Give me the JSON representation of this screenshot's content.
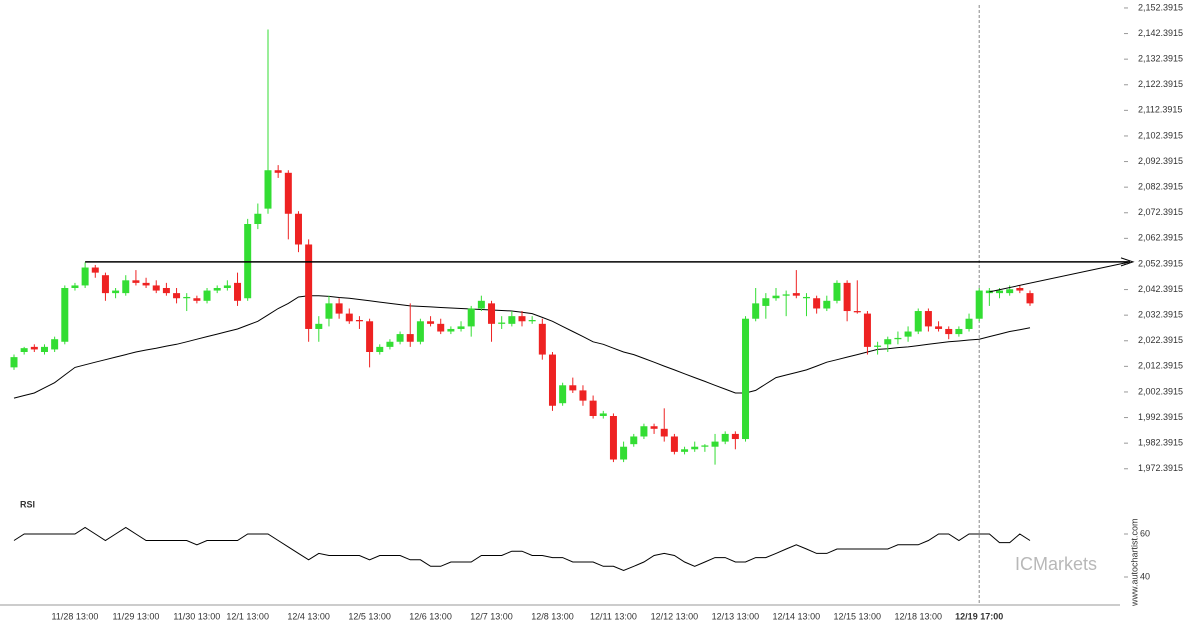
{
  "chart_data": {
    "type": "candlestick",
    "categories": [
      null,
      null,
      null,
      null,
      null,
      null,
      "11/28 13:00",
      null,
      null,
      null,
      null,
      null,
      "11/29 13:00",
      null,
      null,
      null,
      null,
      null,
      "11/30 13:00",
      null,
      null,
      null,
      null,
      "12/1 13:00",
      null,
      null,
      null,
      null,
      null,
      "12/4 13:00",
      null,
      null,
      null,
      null,
      null,
      "12/5 13:00",
      null,
      null,
      null,
      null,
      null,
      "12/6 13:00",
      null,
      null,
      null,
      null,
      null,
      "12/7 13:00",
      null,
      null,
      null,
      null,
      null,
      "12/8 13:00",
      null,
      null,
      null,
      null,
      null,
      "12/11 13:00",
      null,
      null,
      null,
      null,
      null,
      "12/12 13:00",
      null,
      null,
      null,
      null,
      null,
      "12/13 13:00",
      null,
      null,
      null,
      null,
      null,
      "12/14 13:00",
      null,
      null,
      null,
      null,
      null,
      "12/15 13:00",
      null,
      null,
      null,
      null,
      null,
      "12/18 13:00",
      null,
      null,
      null,
      null,
      null,
      "12/19 17:00",
      null,
      null,
      null,
      null,
      null
    ],
    "ohlc": [
      [
        2012,
        2017,
        2011,
        2016
      ],
      [
        2018,
        2020,
        2017,
        2019.5
      ],
      [
        2020,
        2021,
        2018,
        2019
      ],
      [
        2018,
        2021,
        2017,
        2020
      ],
      [
        2019,
        2024,
        2018,
        2023
      ],
      [
        2022,
        2044,
        2021,
        2043
      ],
      [
        2043,
        2045,
        2042,
        2044
      ],
      [
        2044,
        2053,
        2043,
        2051
      ],
      [
        2051,
        2052,
        2047,
        2049
      ],
      [
        2048,
        2049,
        2038,
        2041
      ],
      [
        2041,
        2043,
        2039,
        2042
      ],
      [
        2041,
        2048,
        2040,
        2046
      ],
      [
        2046,
        2050,
        2044,
        2045
      ],
      [
        2045,
        2047,
        2043,
        2044
      ],
      [
        2044,
        2046,
        2041,
        2042
      ],
      [
        2043,
        2045,
        2040,
        2041
      ],
      [
        2041,
        2043,
        2037,
        2039
      ],
      [
        2039,
        2041,
        2034,
        2039.5
      ],
      [
        2039,
        2040,
        2037,
        2038
      ],
      [
        2038,
        2043,
        2037,
        2042
      ],
      [
        2042,
        2044,
        2041,
        2043
      ],
      [
        2043,
        2046,
        2042,
        2044
      ],
      [
        2045,
        2049,
        2036,
        2038
      ],
      [
        2039,
        2070,
        2038,
        2068
      ],
      [
        2068,
        2076,
        2066,
        2072
      ],
      [
        2074,
        2144,
        2072,
        2089
      ],
      [
        2089,
        2091,
        2086,
        2088
      ],
      [
        2088,
        2089,
        2062,
        2072
      ],
      [
        2072,
        2073,
        2057,
        2060
      ],
      [
        2060,
        2062,
        2022,
        2027
      ],
      [
        2027,
        2032,
        2022,
        2029
      ],
      [
        2031,
        2040,
        2028,
        2037
      ],
      [
        2037,
        2039,
        2031,
        2033
      ],
      [
        2033,
        2035,
        2029,
        2030
      ],
      [
        2030.5,
        2032,
        2027,
        2030
      ],
      [
        2030,
        2031,
        2012,
        2018
      ],
      [
        2018,
        2021,
        2017,
        2020
      ],
      [
        2020,
        2023,
        2019,
        2022
      ],
      [
        2022,
        2026,
        2021,
        2025
      ],
      [
        2025,
        2037,
        2020,
        2022
      ],
      [
        2022,
        2031,
        2021,
        2030
      ],
      [
        2030,
        2032,
        2028,
        2029
      ],
      [
        2029,
        2031,
        2025,
        2026
      ],
      [
        2026,
        2028,
        2025,
        2027
      ],
      [
        2027,
        2030,
        2026,
        2028
      ],
      [
        2028,
        2036,
        2024,
        2035
      ],
      [
        2035,
        2040,
        2034,
        2038
      ],
      [
        2037,
        2038,
        2022,
        2029
      ],
      [
        2029,
        2032,
        2027,
        2029.5
      ],
      [
        2029,
        2034,
        2028,
        2032
      ],
      [
        2032,
        2034,
        2028,
        2030
      ],
      [
        2030,
        2032,
        2029,
        2030.5
      ],
      [
        2029,
        2031,
        2015,
        2017
      ],
      [
        2017,
        2018,
        1995,
        1997
      ],
      [
        1998,
        2006,
        1997,
        2005
      ],
      [
        2005,
        2008,
        2002,
        2003
      ],
      [
        2003,
        2005,
        1997,
        1999
      ],
      [
        1999,
        2001,
        1992,
        1993
      ],
      [
        1993,
        1995,
        1992,
        1994
      ],
      [
        1993,
        1994,
        1975,
        1976
      ],
      [
        1976,
        1983,
        1975,
        1981
      ],
      [
        1982,
        1986,
        1981,
        1985
      ],
      [
        1985,
        1990,
        1984,
        1989
      ],
      [
        1989,
        1990,
        1986,
        1988
      ],
      [
        1988,
        1996,
        1983,
        1985
      ],
      [
        1985,
        1986,
        1978,
        1979
      ],
      [
        1979,
        1981,
        1978,
        1980
      ],
      [
        1980,
        1983,
        1979,
        1981
      ],
      [
        1981,
        1982,
        1979,
        1981.5
      ],
      [
        1981,
        1986,
        1974,
        1983
      ],
      [
        1983,
        1987,
        1982,
        1986
      ],
      [
        1986,
        1987,
        1980,
        1984
      ],
      [
        1984,
        2032,
        1983,
        2031
      ],
      [
        2031,
        2043,
        2030,
        2037
      ],
      [
        2036,
        2041,
        2031,
        2039
      ],
      [
        2039,
        2043,
        2038,
        2040
      ],
      [
        2040,
        2042,
        2032,
        2040.5
      ],
      [
        2041,
        2050,
        2039,
        2040
      ],
      [
        2039,
        2041,
        2032,
        2039.5
      ],
      [
        2039,
        2040,
        2033,
        2035
      ],
      [
        2035,
        2040,
        2034,
        2038
      ],
      [
        2038,
        2046,
        2037,
        2045
      ],
      [
        2045,
        2046,
        2030,
        2034
      ],
      [
        2034,
        2046,
        2033,
        2033.5
      ],
      [
        2033,
        2034,
        2017,
        2020
      ],
      [
        2020,
        2022,
        2017,
        2020.5
      ],
      [
        2021,
        2024,
        2018,
        2023
      ],
      [
        2023,
        2026,
        2021,
        2023.5
      ],
      [
        2024,
        2028,
        2022,
        2026
      ],
      [
        2026,
        2035,
        2025,
        2034
      ],
      [
        2034,
        2035,
        2026,
        2028
      ],
      [
        2028,
        2030,
        2026,
        2027
      ],
      [
        2027,
        2028,
        2023,
        2025
      ],
      [
        2025,
        2028,
        2024,
        2027
      ],
      [
        2027,
        2033,
        2026,
        2031
      ],
      [
        2031,
        2043,
        2030,
        2042
      ],
      [
        2041,
        2043,
        2036,
        2042
      ],
      [
        2041,
        2043,
        2039,
        2042
      ],
      [
        2041,
        2044,
        2040,
        2042.5
      ],
      [
        2043,
        2044,
        2041,
        2042
      ],
      [
        2041,
        2042,
        2036,
        2037
      ]
    ],
    "up_color": "#33dd33",
    "down_color": "#ee2222",
    "ylim": [
      1968,
      2155.5
    ],
    "yticks": [
      {
        "value": 1972.3915,
        "label": "1,972.3915"
      },
      {
        "value": 1982.3915,
        "label": "1,982.3915"
      },
      {
        "value": 1992.3915,
        "label": "1,992.3915"
      },
      {
        "value": 2002.3915,
        "label": "2,002.3915"
      },
      {
        "value": 2012.3915,
        "label": "2,012.3915"
      },
      {
        "value": 2022.3915,
        "label": "2,022.3915"
      },
      {
        "value": 2032.3915,
        "label": "2,032.3915"
      },
      {
        "value": 2042.3915,
        "label": "2,042.3915"
      },
      {
        "value": 2052.3915,
        "label": "2,052.3915"
      },
      {
        "value": 2062.3915,
        "label": "2,062.3915"
      },
      {
        "value": 2072.3915,
        "label": "2,072.3915"
      },
      {
        "value": 2082.3915,
        "label": "2,082.3915"
      },
      {
        "value": 2092.3915,
        "label": "2,092.3915"
      },
      {
        "value": 2102.3915,
        "label": "2,102.3915"
      },
      {
        "value": 2112.3915,
        "label": "2,112.3915"
      },
      {
        "value": 2122.3915,
        "label": "2,122.3915"
      },
      {
        "value": 2132.3915,
        "label": "2,132.3915"
      },
      {
        "value": 2142.3915,
        "label": "2,142.3915"
      },
      {
        "value": 2152.3915,
        "label": "2,152.3915"
      }
    ],
    "moving_average": {
      "color": "#000000",
      "values": [
        2000,
        2001,
        2002,
        2004,
        2006,
        2009,
        2012,
        2013,
        2014,
        2015,
        2016,
        2017,
        2018,
        2018.8,
        2019.5,
        2020.3,
        2021,
        2022,
        2023,
        2024,
        2025,
        2026,
        2027,
        2028.5,
        2030,
        2032.5,
        2035,
        2037,
        2039.5,
        2040,
        2040,
        2039.7,
        2039.3,
        2039,
        2038.5,
        2038,
        2037.5,
        2037,
        2036.5,
        2036,
        2035.8,
        2035.6,
        2035.4,
        2035.2,
        2035,
        2034.8,
        2034.6,
        2034.4,
        2034.2,
        2034,
        2033.5,
        2033,
        2031.5,
        2030,
        2028,
        2026,
        2024,
        2022,
        2021,
        2019.5,
        2018,
        2017,
        2015.5,
        2014,
        2012.5,
        2011,
        2009.5,
        2008,
        2006.5,
        2005,
        2003.5,
        2002,
        2002,
        2003,
        2005.5,
        2008,
        2009,
        2010,
        2011,
        2012.5,
        2014,
        2015,
        2016,
        2017,
        2018,
        2019,
        2019.3,
        2019.7,
        2020,
        2020.5,
        2021,
        2021.5,
        2022,
        2022.3,
        2022.7,
        2023,
        2024,
        2025,
        2026,
        2026.7,
        2027.5
      ]
    },
    "resistance_level": 2053.2,
    "trend_line": [
      2041.5,
      2053.2
    ],
    "rsi": {
      "label": "RSI",
      "color": "#000000",
      "ylim": [
        30,
        75
      ],
      "yticks": [
        40,
        60
      ],
      "values": [
        57,
        60,
        60,
        60,
        60,
        60,
        60,
        63,
        60,
        57,
        60,
        63,
        60,
        57,
        57,
        57,
        57,
        57,
        55,
        57,
        57,
        57,
        57,
        60,
        60,
        60,
        57,
        54,
        51,
        48,
        51,
        50,
        50,
        50,
        50,
        48,
        50,
        50,
        50,
        48,
        48,
        45,
        45,
        47,
        47,
        47,
        50,
        50,
        50,
        52,
        52,
        50,
        50,
        49,
        49,
        47,
        47,
        47,
        45,
        45,
        43,
        45,
        47,
        50,
        51,
        50,
        47,
        45,
        47,
        49,
        49,
        47,
        47,
        49,
        49,
        51,
        53,
        55,
        53,
        51,
        51,
        53,
        53,
        53,
        53,
        53,
        53,
        55,
        55,
        55,
        57,
        60,
        60,
        57,
        60,
        60,
        60,
        56,
        56,
        60,
        57
      ]
    },
    "brand": "ICMarkets",
    "source": "www.autochartist.com"
  }
}
